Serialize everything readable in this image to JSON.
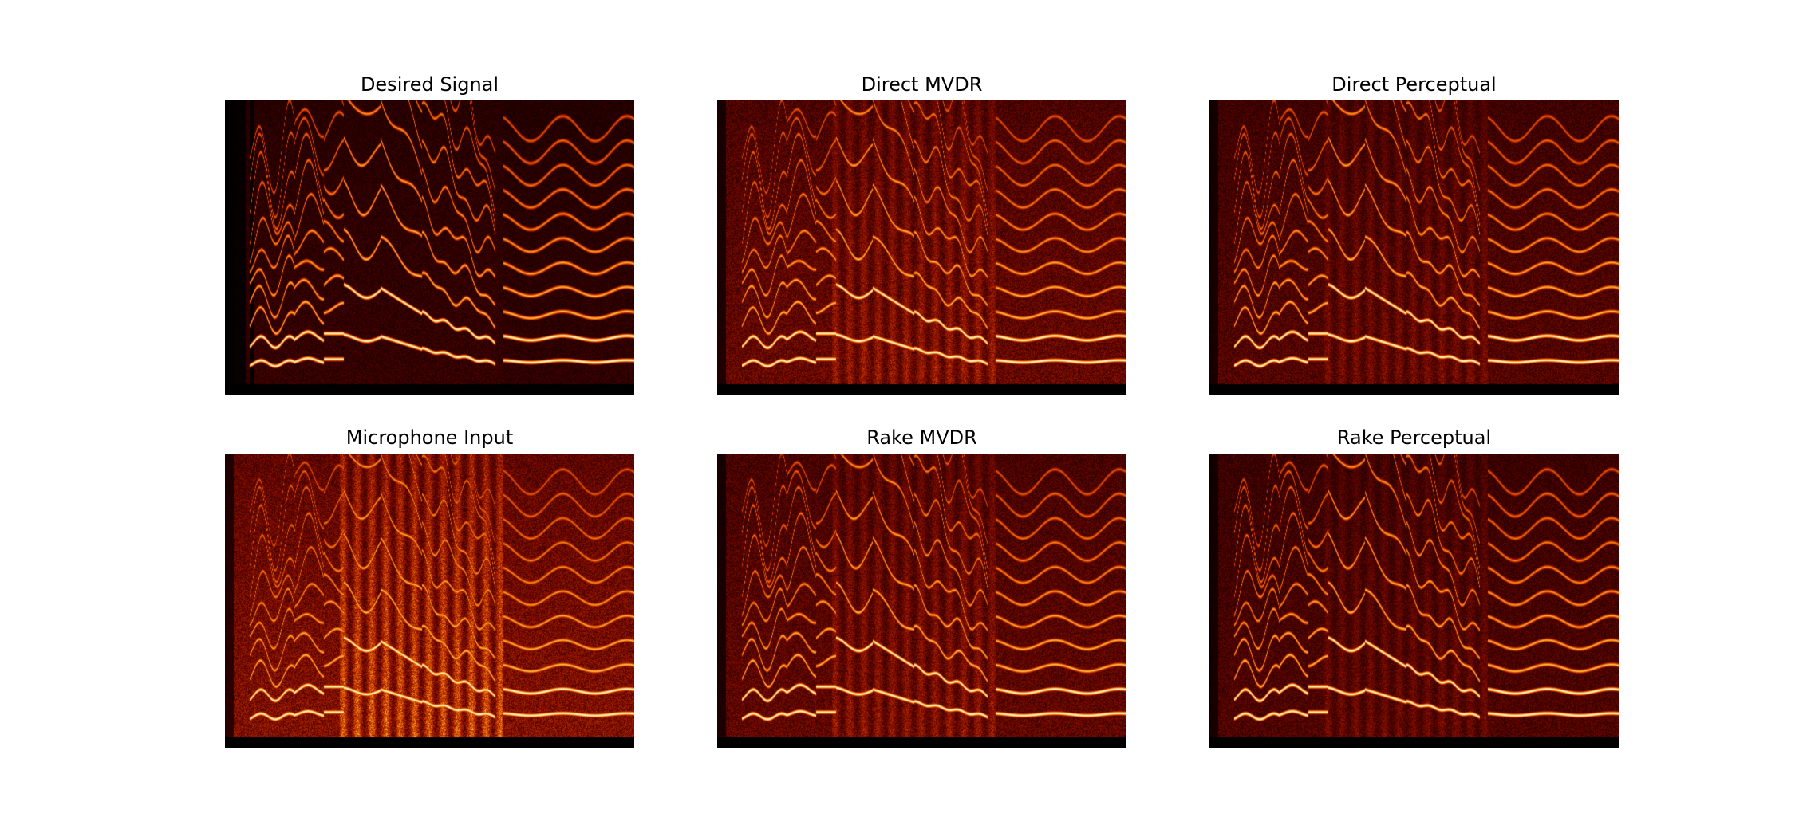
{
  "figure": {
    "background": "#ffffff",
    "title_color": "#000000",
    "colormap": [
      "#000000",
      "#3a0000",
      "#7a0a00",
      "#b52a00",
      "#e86a00",
      "#ffb03a",
      "#fff0c0"
    ]
  },
  "chart_data": [
    {
      "type": "heatmap",
      "title": "Desired Signal",
      "variant": "desired",
      "axes": "off",
      "noise_level": 0.22,
      "silence_start": true
    },
    {
      "type": "heatmap",
      "title": "Direct MVDR",
      "variant": "direct_mvdr",
      "axes": "off",
      "noise_level": 0.38,
      "interference": 0.45
    },
    {
      "type": "heatmap",
      "title": "Direct Perceptual",
      "variant": "direct_perceptual",
      "axes": "off",
      "noise_level": 0.32,
      "interference": 0.3
    },
    {
      "type": "heatmap",
      "title": "Microphone Input",
      "variant": "microphone",
      "axes": "off",
      "noise_level": 0.45,
      "interference": 0.85
    },
    {
      "type": "heatmap",
      "title": "Rake MVDR",
      "variant": "rake_mvdr",
      "axes": "off",
      "noise_level": 0.36,
      "interference": 0.42
    },
    {
      "type": "heatmap",
      "title": "Rake Perceptual",
      "variant": "rake_perceptual",
      "axes": "off",
      "noise_level": 0.3,
      "interference": 0.28
    }
  ]
}
